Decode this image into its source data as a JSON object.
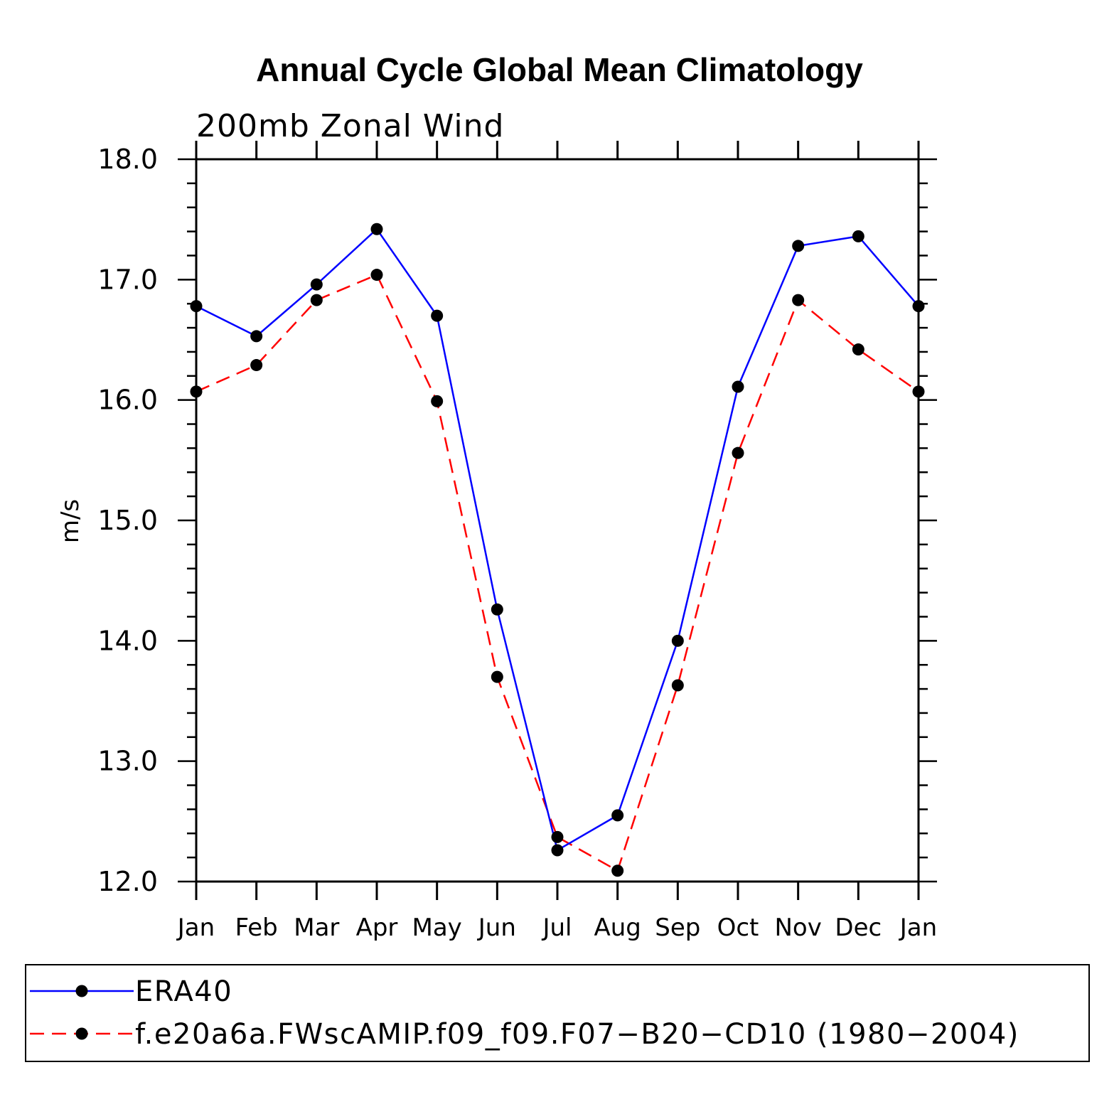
{
  "chart_data": {
    "type": "line",
    "title": "Annual Cycle Global Mean Climatology",
    "subtitle": "200mb Zonal Wind",
    "ylabel": "m/s",
    "xlabel": "",
    "categories": [
      "Jan",
      "Feb",
      "Mar",
      "Apr",
      "May",
      "Jun",
      "Jul",
      "Aug",
      "Sep",
      "Oct",
      "Nov",
      "Dec",
      "Jan"
    ],
    "ylim": [
      12.0,
      18.0
    ],
    "yticks": [
      "12.0",
      "13.0",
      "14.0",
      "15.0",
      "16.0",
      "17.0",
      "18.0"
    ],
    "series": [
      {
        "name": "ERA40",
        "color": "#0000ff",
        "dash": "solid",
        "marker": "filled-circle",
        "values": [
          16.78,
          16.53,
          16.96,
          17.42,
          16.7,
          14.26,
          12.26,
          12.55,
          14.0,
          16.11,
          17.28,
          17.36,
          16.78
        ]
      },
      {
        "name": "f.e20a6a.FWscAMIP.f09_f09.F07−B20−CD10 (1980−2004)",
        "color": "#ff0000",
        "dash": "dashed",
        "marker": "filled-circle",
        "values": [
          16.07,
          16.29,
          16.83,
          17.04,
          15.99,
          13.7,
          12.37,
          12.09,
          13.63,
          15.56,
          16.83,
          16.42,
          16.07
        ]
      }
    ],
    "legend_position": "bottom"
  }
}
